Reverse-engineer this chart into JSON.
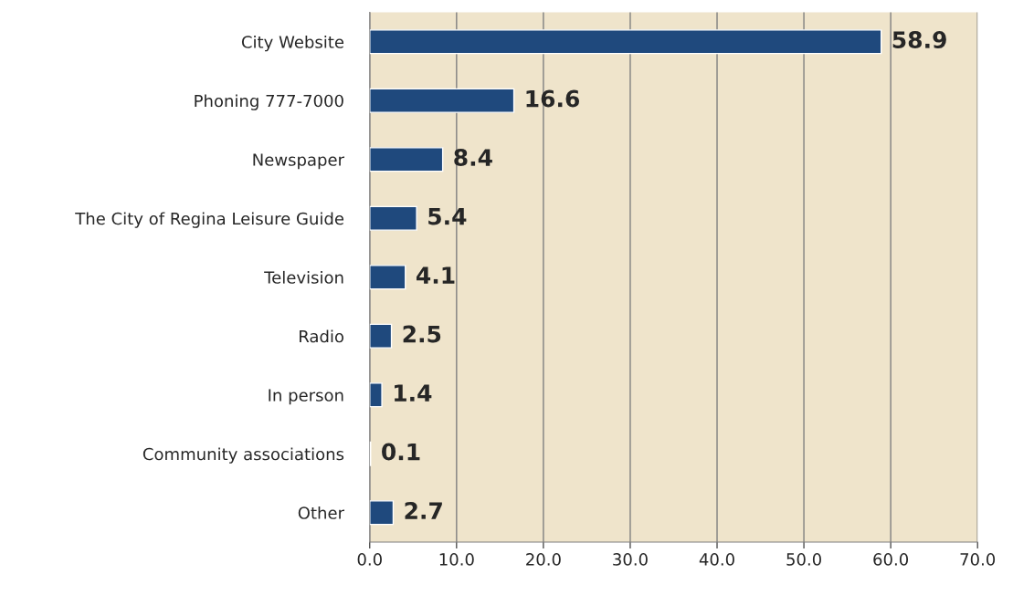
{
  "chart_data": {
    "type": "bar",
    "orientation": "horizontal",
    "categories": [
      "City Website",
      "Phoning 777-7000",
      "Newspaper",
      "The City of Regina Leisure Guide",
      "Television",
      "Radio",
      "In person",
      "Community associations",
      "Other"
    ],
    "values": [
      58.9,
      16.6,
      8.4,
      5.4,
      4.1,
      2.5,
      1.4,
      0.1,
      2.7
    ],
    "color": "#1f497d",
    "xlim": [
      0,
      70
    ],
    "xticks": [
      {
        "value": 0,
        "label": "0.0"
      },
      {
        "value": 10,
        "label": "10.0"
      },
      {
        "value": 20,
        "label": "20.0"
      },
      {
        "value": 30,
        "label": "30.0"
      },
      {
        "value": 40,
        "label": "40.0"
      },
      {
        "value": 50,
        "label": "50.0"
      },
      {
        "value": 60,
        "label": "60.0"
      },
      {
        "value": 70,
        "label": "70.0"
      }
    ],
    "grid": "x",
    "data_labels": true
  }
}
